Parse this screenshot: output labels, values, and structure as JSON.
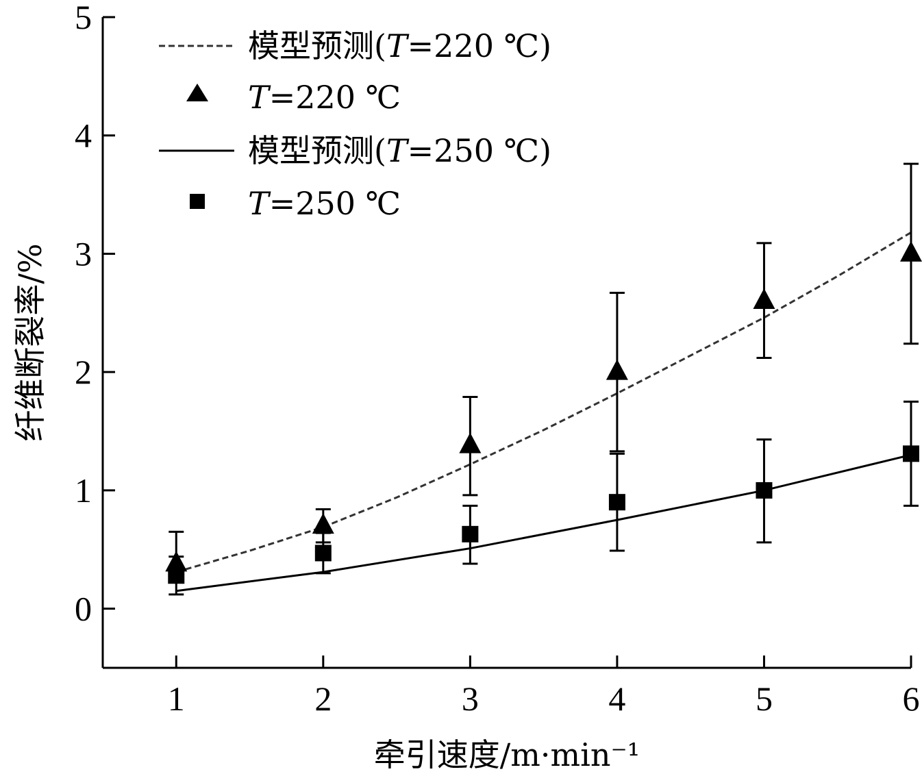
{
  "chart_data": {
    "type": "line",
    "xlabel": "牵引速度/m·min⁻¹",
    "ylabel": "纤维断裂率/%",
    "xlim": [
      0.5,
      6
    ],
    "ylim": [
      -0.5,
      5
    ],
    "x_ticks": [
      "1",
      "2",
      "3",
      "4",
      "5",
      "6"
    ],
    "y_ticks": [
      "0",
      "1",
      "2",
      "3",
      "4",
      "5"
    ],
    "grid": false,
    "legend_position": "top-left",
    "series": [
      {
        "name": "模型预测(T=220 ℃)",
        "kind": "line",
        "style": "dashed",
        "color": "#333333",
        "x": [
          1,
          1.5,
          2,
          2.5,
          3,
          3.5,
          4,
          4.5,
          5,
          5.5,
          6
        ],
        "y": [
          0.31,
          0.49,
          0.69,
          0.94,
          1.22,
          1.51,
          1.82,
          2.14,
          2.46,
          2.81,
          3.18
        ]
      },
      {
        "name": "T=220 ℃",
        "kind": "marker",
        "marker": "triangle",
        "color": "#000000",
        "x": [
          1,
          2,
          3,
          4,
          5,
          6
        ],
        "y": [
          0.38,
          0.7,
          1.38,
          2.0,
          2.6,
          3.0
        ],
        "err_low": [
          0.27,
          0.56,
          0.96,
          1.33,
          2.12,
          2.24
        ],
        "err_high": [
          0.65,
          0.84,
          1.79,
          2.67,
          3.09,
          3.76
        ]
      },
      {
        "name": "模型预测(T=250 ℃)",
        "kind": "line",
        "style": "solid",
        "color": "#000000",
        "x": [
          1,
          2,
          3,
          4,
          5,
          6
        ],
        "y": [
          0.15,
          0.31,
          0.51,
          0.75,
          1.0,
          1.3
        ]
      },
      {
        "name": "T=250 ℃",
        "kind": "marker",
        "marker": "square",
        "color": "#000000",
        "x": [
          1,
          2,
          3,
          4,
          5,
          6
        ],
        "y": [
          0.28,
          0.47,
          0.63,
          0.9,
          1.0,
          1.31
        ],
        "err_low": [
          0.12,
          0.3,
          0.38,
          0.49,
          0.56,
          0.87
        ],
        "err_high": [
          0.44,
          0.64,
          0.87,
          1.31,
          1.43,
          1.75
        ]
      }
    ],
    "legend": [
      {
        "label_main": "模型预测(",
        "label_italic": "T",
        "label_rest": "=220 ℃)"
      },
      {
        "label_main": "",
        "label_italic": "T",
        "label_rest": "=220 ℃"
      },
      {
        "label_main": "模型预测(",
        "label_italic": "T",
        "label_rest": "=250 ℃)"
      },
      {
        "label_main": "",
        "label_italic": "T",
        "label_rest": "=250 ℃"
      }
    ]
  }
}
